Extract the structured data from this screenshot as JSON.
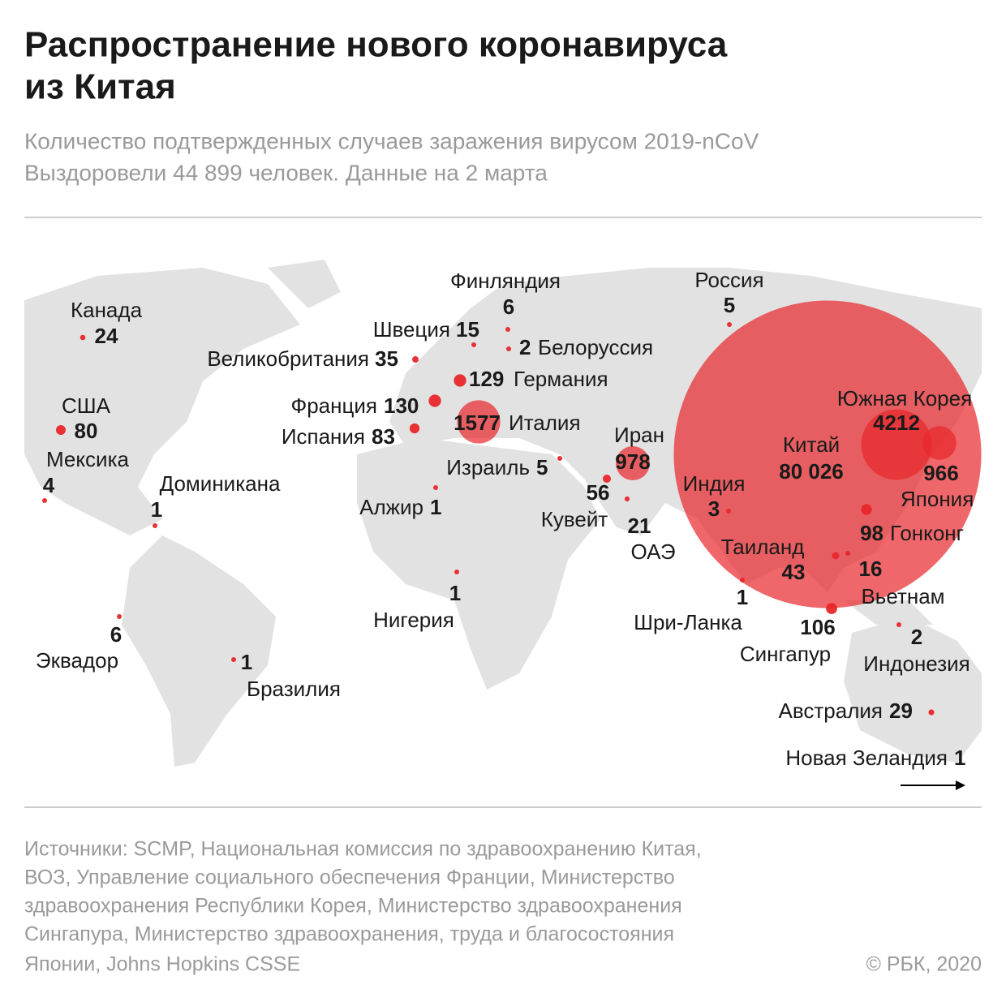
{
  "header": {
    "title": [
      "Распространение нового коронавируса",
      "из Китая"
    ],
    "subtitle": [
      "Количество подтвержденных случаев заражения вирусом 2019-nCoV",
      "Выздоровели 44 899 человек. Данные на 2 марта"
    ]
  },
  "map": {
    "color": "#e8262b",
    "markers": [
      {
        "name": "Китай",
        "value": 80026,
        "value_label": "80 026"
      },
      {
        "name": "Южная Корея",
        "value": 4212
      },
      {
        "name": "Япония",
        "value": 966
      },
      {
        "name": "Гонконг",
        "value": 98
      },
      {
        "name": "Вьетнам",
        "value": 16
      },
      {
        "name": "Таиланд",
        "value": 43
      },
      {
        "name": "Сингапур",
        "value": 106
      },
      {
        "name": "Индонезия",
        "value": 2
      },
      {
        "name": "Австралия",
        "value": 29
      },
      {
        "name": "Новая Зеландия",
        "value": 1
      },
      {
        "name": "Шри-Ланка",
        "value": 1
      },
      {
        "name": "Индия",
        "value": 3
      },
      {
        "name": "ОАЭ",
        "value": 21
      },
      {
        "name": "Кувейт",
        "value": 56
      },
      {
        "name": "Иран",
        "value": 978
      },
      {
        "name": "Израиль",
        "value": 5
      },
      {
        "name": "Италия",
        "value": 1577
      },
      {
        "name": "Испания",
        "value": 83
      },
      {
        "name": "Франция",
        "value": 130
      },
      {
        "name": "Германия",
        "value": 129
      },
      {
        "name": "Великобритания",
        "value": 35
      },
      {
        "name": "Швеция",
        "value": 15
      },
      {
        "name": "Финляндия",
        "value": 6
      },
      {
        "name": "Белоруссия",
        "value": 2
      },
      {
        "name": "Россия",
        "value": 5
      },
      {
        "name": "Канада",
        "value": 24
      },
      {
        "name": "США",
        "value": 80
      },
      {
        "name": "Мексика",
        "value": 4
      },
      {
        "name": "Доминикана",
        "value": 1
      },
      {
        "name": "Алжир",
        "value": 1
      },
      {
        "name": "Нигерия",
        "value": 1
      },
      {
        "name": "Эквадор",
        "value": 6
      },
      {
        "name": "Бразилия",
        "value": 1
      }
    ]
  },
  "footer": {
    "sources": [
      "Источники: SCMP, Национальная комиссия по здравоохранению Китая,",
      "ВОЗ, Управление социального обеспечения Франции, Министерство",
      "здравоохранения Республики Корея, Министерство здравоохранения",
      "Сингапура, Министерство здравоохранения, труда и благосостояния",
      "Японии, Johns Hopkins CSSE"
    ],
    "copyright": "© РБК, 2020"
  }
}
